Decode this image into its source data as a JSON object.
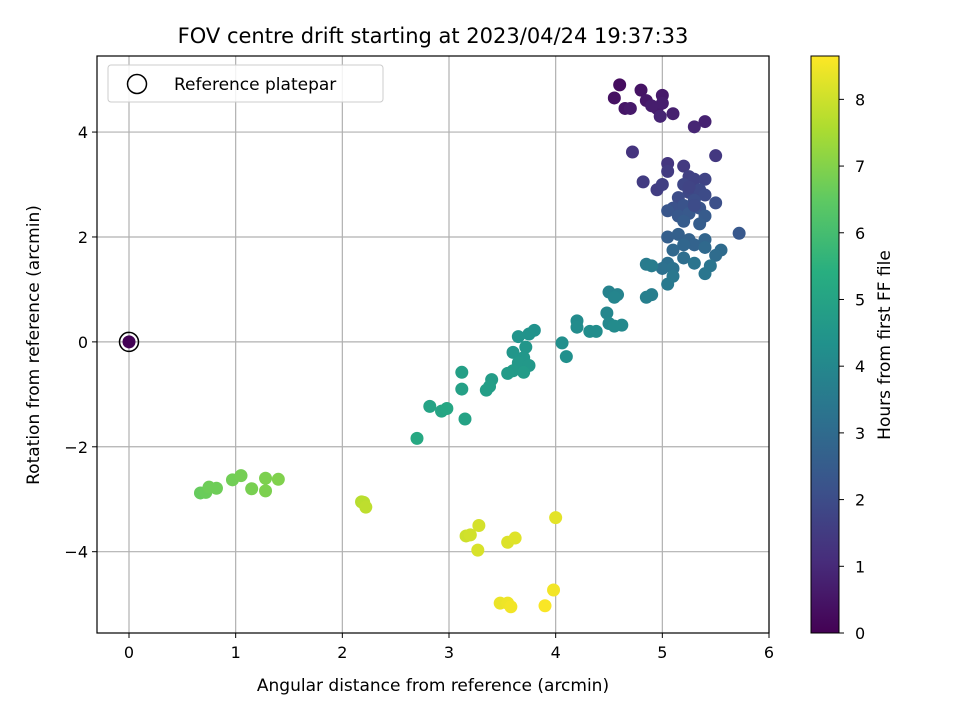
{
  "chart_data": {
    "type": "scatter",
    "title": "FOV centre drift starting at 2023/04/24 19:37:33",
    "xlabel": "Angular distance from reference (arcmin)",
    "ylabel": "Rotation from reference (arcmin)",
    "xlim": [
      -0.3,
      6
    ],
    "ylim": [
      -5.55,
      5.45
    ],
    "xticks": [
      0,
      1,
      2,
      3,
      4,
      5,
      6
    ],
    "yticks": [
      -4,
      -2,
      0,
      2,
      4
    ],
    "grid": true,
    "legend": {
      "placement": "upper-left",
      "entries": [
        "Reference platepar"
      ]
    },
    "reference_point": {
      "x": 0,
      "y": 0
    },
    "colorbar": {
      "label": "Hours from first FF file",
      "range": [
        0,
        8.65
      ],
      "ticks": [
        0,
        1,
        2,
        3,
        4,
        5,
        6,
        7,
        8
      ],
      "colormap": "viridis"
    },
    "points": [
      {
        "x": 0,
        "y": 0,
        "c": 0.05
      },
      {
        "x": 4.6,
        "y": 4.9,
        "c": 0.3
      },
      {
        "x": 4.55,
        "y": 4.65,
        "c": 0.4
      },
      {
        "x": 4.8,
        "y": 4.8,
        "c": 0.45
      },
      {
        "x": 4.65,
        "y": 4.45,
        "c": 0.5
      },
      {
        "x": 4.85,
        "y": 4.6,
        "c": 0.55
      },
      {
        "x": 5.0,
        "y": 4.7,
        "c": 0.6
      },
      {
        "x": 4.95,
        "y": 4.45,
        "c": 0.65
      },
      {
        "x": 5.0,
        "y": 4.55,
        "c": 0.7
      },
      {
        "x": 5.1,
        "y": 4.35,
        "c": 0.75
      },
      {
        "x": 5.4,
        "y": 4.2,
        "c": 0.8
      },
      {
        "x": 4.98,
        "y": 4.3,
        "c": 0.85
      },
      {
        "x": 5.3,
        "y": 4.1,
        "c": 0.9
      },
      {
        "x": 4.7,
        "y": 4.45,
        "c": 0.6
      },
      {
        "x": 4.9,
        "y": 4.5,
        "c": 0.7
      },
      {
        "x": 4.72,
        "y": 3.62,
        "c": 1.3
      },
      {
        "x": 5.05,
        "y": 3.4,
        "c": 1.35
      },
      {
        "x": 5.5,
        "y": 3.55,
        "c": 1.4
      },
      {
        "x": 5.2,
        "y": 3.35,
        "c": 1.45
      },
      {
        "x": 5.05,
        "y": 3.25,
        "c": 1.5
      },
      {
        "x": 4.82,
        "y": 3.05,
        "c": 1.5
      },
      {
        "x": 4.95,
        "y": 2.9,
        "c": 1.55
      },
      {
        "x": 5.0,
        "y": 3.0,
        "c": 1.6
      },
      {
        "x": 5.25,
        "y": 3.15,
        "c": 1.65
      },
      {
        "x": 5.3,
        "y": 3.1,
        "c": 1.7
      },
      {
        "x": 5.4,
        "y": 3.1,
        "c": 1.75
      },
      {
        "x": 5.2,
        "y": 3.0,
        "c": 1.8
      },
      {
        "x": 5.25,
        "y": 2.85,
        "c": 1.85
      },
      {
        "x": 5.35,
        "y": 2.9,
        "c": 1.9
      },
      {
        "x": 5.4,
        "y": 2.8,
        "c": 1.95
      },
      {
        "x": 5.15,
        "y": 2.75,
        "c": 2.0
      },
      {
        "x": 5.3,
        "y": 2.7,
        "c": 2.05
      },
      {
        "x": 5.5,
        "y": 2.65,
        "c": 2.1
      },
      {
        "x": 5.1,
        "y": 2.55,
        "c": 2.15
      },
      {
        "x": 5.2,
        "y": 2.6,
        "c": 2.2
      },
      {
        "x": 5.35,
        "y": 2.55,
        "c": 2.25
      },
      {
        "x": 5.05,
        "y": 2.5,
        "c": 2.3
      },
      {
        "x": 5.15,
        "y": 2.4,
        "c": 2.35
      },
      {
        "x": 5.25,
        "y": 2.45,
        "c": 2.4
      },
      {
        "x": 5.4,
        "y": 2.4,
        "c": 2.45
      },
      {
        "x": 5.2,
        "y": 2.3,
        "c": 2.5
      },
      {
        "x": 5.35,
        "y": 2.25,
        "c": 2.55
      },
      {
        "x": 5.3,
        "y": 2.6,
        "c": 2.0
      },
      {
        "x": 5.25,
        "y": 2.95,
        "c": 1.75
      },
      {
        "x": 5.72,
        "y": 2.07,
        "c": 2.35
      },
      {
        "x": 5.05,
        "y": 2.0,
        "c": 2.6
      },
      {
        "x": 5.15,
        "y": 2.05,
        "c": 2.65
      },
      {
        "x": 5.25,
        "y": 1.95,
        "c": 2.7
      },
      {
        "x": 5.3,
        "y": 1.85,
        "c": 2.75
      },
      {
        "x": 5.4,
        "y": 1.95,
        "c": 2.8
      },
      {
        "x": 5.2,
        "y": 1.85,
        "c": 2.85
      },
      {
        "x": 5.1,
        "y": 1.75,
        "c": 2.9
      },
      {
        "x": 5.4,
        "y": 1.8,
        "c": 2.95
      },
      {
        "x": 5.55,
        "y": 1.75,
        "c": 3.0
      },
      {
        "x": 5.5,
        "y": 1.65,
        "c": 3.05
      },
      {
        "x": 5.2,
        "y": 1.6,
        "c": 3.1
      },
      {
        "x": 5.05,
        "y": 1.5,
        "c": 3.15
      },
      {
        "x": 5.0,
        "y": 1.4,
        "c": 3.2
      },
      {
        "x": 5.1,
        "y": 1.4,
        "c": 3.25
      },
      {
        "x": 5.3,
        "y": 1.5,
        "c": 3.3
      },
      {
        "x": 5.45,
        "y": 1.45,
        "c": 3.35
      },
      {
        "x": 5.4,
        "y": 1.3,
        "c": 3.4
      },
      {
        "x": 5.1,
        "y": 1.25,
        "c": 3.45
      },
      {
        "x": 5.05,
        "y": 1.1,
        "c": 3.5
      },
      {
        "x": 4.85,
        "y": 1.48,
        "c": 3.55
      },
      {
        "x": 4.9,
        "y": 1.45,
        "c": 3.6
      },
      {
        "x": 4.9,
        "y": 0.9,
        "c": 3.65
      },
      {
        "x": 4.85,
        "y": 0.85,
        "c": 3.7
      },
      {
        "x": 4.5,
        "y": 0.95,
        "c": 3.8
      },
      {
        "x": 4.58,
        "y": 0.9,
        "c": 3.85
      },
      {
        "x": 4.55,
        "y": 0.85,
        "c": 3.9
      },
      {
        "x": 4.48,
        "y": 0.55,
        "c": 3.95
      },
      {
        "x": 4.5,
        "y": 0.35,
        "c": 4.0
      },
      {
        "x": 4.62,
        "y": 0.32,
        "c": 4.05
      },
      {
        "x": 4.55,
        "y": 0.3,
        "c": 4.1
      },
      {
        "x": 4.2,
        "y": 0.4,
        "c": 4.1
      },
      {
        "x": 4.2,
        "y": 0.28,
        "c": 4.15
      },
      {
        "x": 4.32,
        "y": 0.2,
        "c": 4.2
      },
      {
        "x": 4.38,
        "y": 0.2,
        "c": 4.2
      },
      {
        "x": 4.06,
        "y": -0.02,
        "c": 4.25
      },
      {
        "x": 4.1,
        "y": -0.28,
        "c": 4.3
      },
      {
        "x": 3.8,
        "y": 0.22,
        "c": 4.35
      },
      {
        "x": 3.75,
        "y": 0.15,
        "c": 4.4
      },
      {
        "x": 3.65,
        "y": 0.1,
        "c": 4.45
      },
      {
        "x": 3.72,
        "y": -0.1,
        "c": 4.5
      },
      {
        "x": 3.6,
        "y": -0.2,
        "c": 4.5
      },
      {
        "x": 3.7,
        "y": -0.3,
        "c": 4.55
      },
      {
        "x": 3.65,
        "y": -0.4,
        "c": 4.6
      },
      {
        "x": 3.75,
        "y": -0.45,
        "c": 4.6
      },
      {
        "x": 3.6,
        "y": -0.55,
        "c": 4.65
      },
      {
        "x": 3.55,
        "y": -0.6,
        "c": 4.7
      },
      {
        "x": 3.7,
        "y": -0.58,
        "c": 4.7
      },
      {
        "x": 3.4,
        "y": -0.72,
        "c": 4.75
      },
      {
        "x": 3.38,
        "y": -0.85,
        "c": 4.8
      },
      {
        "x": 3.35,
        "y": -0.92,
        "c": 4.8
      },
      {
        "x": 3.12,
        "y": -0.58,
        "c": 4.85
      },
      {
        "x": 3.12,
        "y": -0.9,
        "c": 4.9
      },
      {
        "x": 3.15,
        "y": -1.47,
        "c": 4.95
      },
      {
        "x": 2.82,
        "y": -1.23,
        "c": 5.0
      },
      {
        "x": 2.93,
        "y": -1.32,
        "c": 5.05
      },
      {
        "x": 2.98,
        "y": -1.27,
        "c": 5.1
      },
      {
        "x": 2.7,
        "y": -1.84,
        "c": 5.2
      },
      {
        "x": 0.67,
        "y": -2.88,
        "c": 6.6
      },
      {
        "x": 0.72,
        "y": -2.87,
        "c": 6.65
      },
      {
        "x": 0.75,
        "y": -2.77,
        "c": 6.7
      },
      {
        "x": 0.82,
        "y": -2.79,
        "c": 6.7
      },
      {
        "x": 0.97,
        "y": -2.63,
        "c": 6.75
      },
      {
        "x": 1.05,
        "y": -2.55,
        "c": 6.8
      },
      {
        "x": 1.15,
        "y": -2.8,
        "c": 6.85
      },
      {
        "x": 1.28,
        "y": -2.84,
        "c": 6.9
      },
      {
        "x": 1.28,
        "y": -2.6,
        "c": 6.9
      },
      {
        "x": 1.4,
        "y": -2.62,
        "c": 6.95
      },
      {
        "x": 2.18,
        "y": -3.05,
        "c": 7.7
      },
      {
        "x": 2.2,
        "y": -3.06,
        "c": 7.75
      },
      {
        "x": 2.22,
        "y": -3.15,
        "c": 7.8
      },
      {
        "x": 3.16,
        "y": -3.7,
        "c": 8.0
      },
      {
        "x": 3.2,
        "y": -3.68,
        "c": 8.05
      },
      {
        "x": 3.28,
        "y": -3.5,
        "c": 8.1
      },
      {
        "x": 3.27,
        "y": -3.97,
        "c": 8.15
      },
      {
        "x": 3.55,
        "y": -3.82,
        "c": 8.2
      },
      {
        "x": 3.62,
        "y": -3.74,
        "c": 8.25
      },
      {
        "x": 4.0,
        "y": -3.35,
        "c": 8.3
      },
      {
        "x": 3.48,
        "y": -4.98,
        "c": 8.4
      },
      {
        "x": 3.55,
        "y": -4.98,
        "c": 8.45
      },
      {
        "x": 3.58,
        "y": -5.05,
        "c": 8.5
      },
      {
        "x": 3.98,
        "y": -4.73,
        "c": 8.5
      },
      {
        "x": 3.9,
        "y": -5.03,
        "c": 8.6
      }
    ]
  }
}
